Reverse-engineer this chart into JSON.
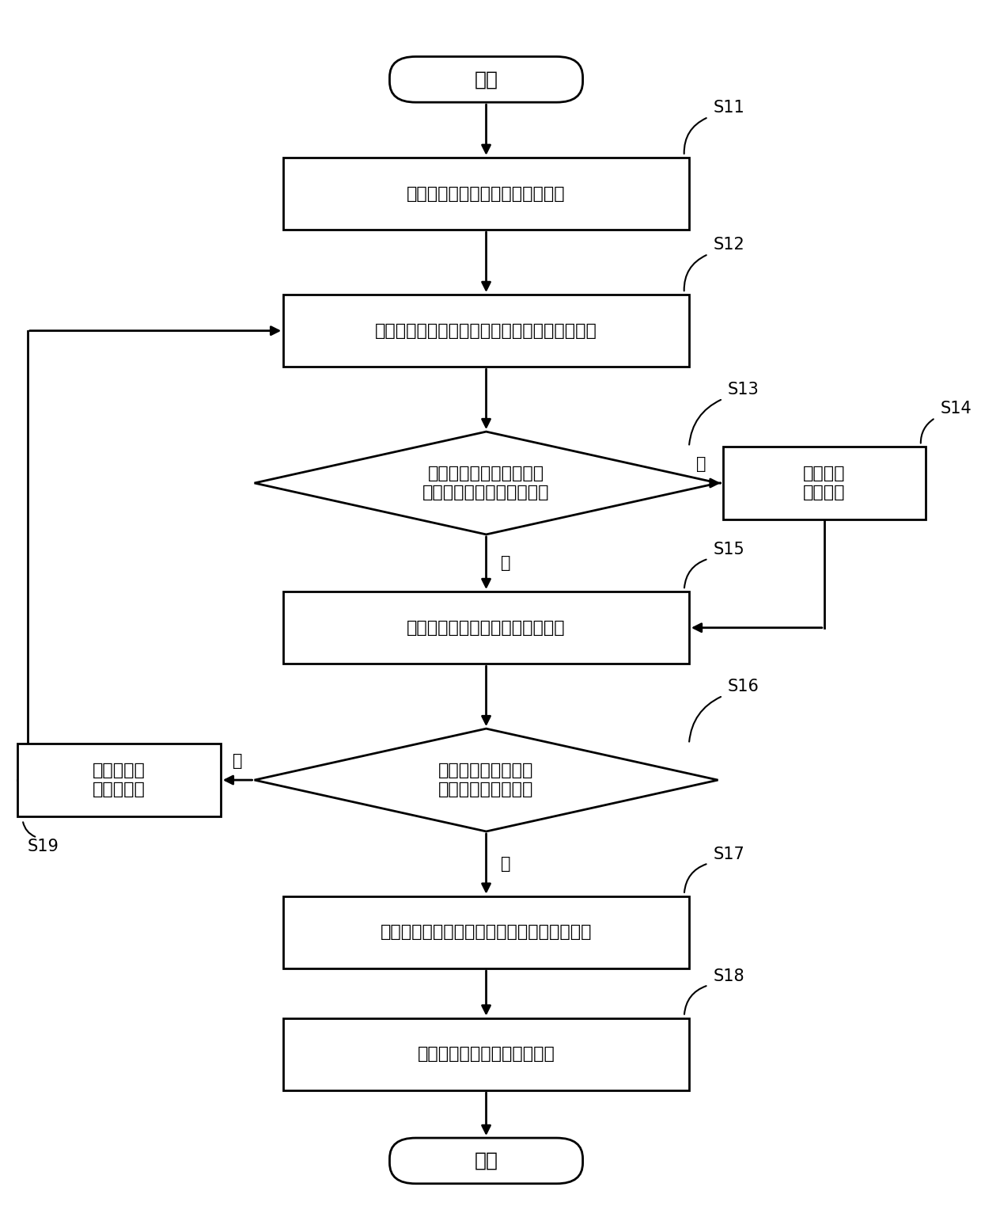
{
  "bg_color": "#ffffff",
  "font_size": 16,
  "label_font_size": 15,
  "start_text": "开始",
  "end_text": "结束",
  "S11_text": "获取预设位置的多个红外信号数据",
  "S12_text": "获取当前红外信号数据的电平特征以及持续时间",
  "S13_text": "当前红外信号数据的电平\n与上一红外信号数据相同？",
  "S14_text": "累加电平\n持续时间",
  "S15_text": "记录当前红外信号数据的电平变化",
  "S16_text": "当前红外信号数据为\n协议解析结束数据？",
  "S17_text": "根据之前的多个数据确定红外信号的编码类型",
  "S18_text": "存储当前协议的红外信号数据",
  "S19_text": "获取下一红\n外信号数据",
  "yes": "是",
  "no": "否"
}
